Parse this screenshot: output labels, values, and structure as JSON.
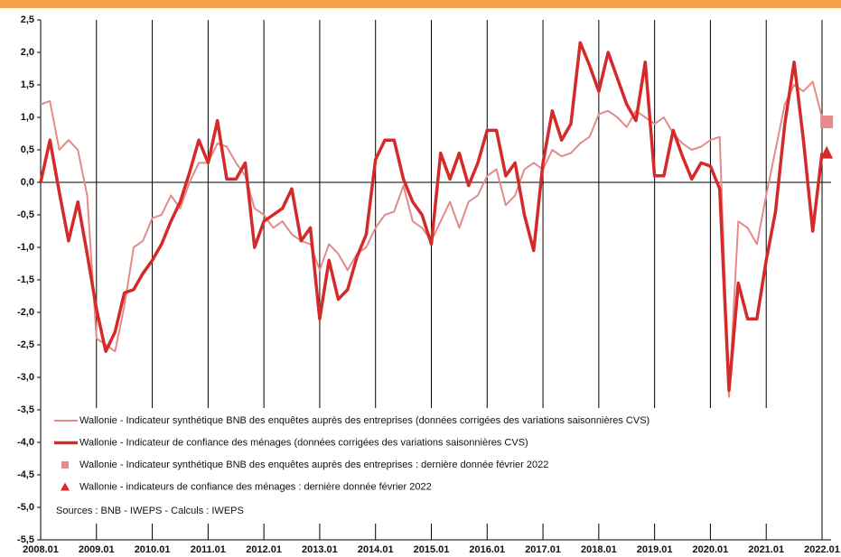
{
  "chart_data": {
    "type": "line",
    "x": [
      "2008.01",
      "2008.03",
      "2008.05",
      "2008.07",
      "2008.09",
      "2008.11",
      "2009.01",
      "2009.03",
      "2009.05",
      "2009.07",
      "2009.09",
      "2009.11",
      "2010.01",
      "2010.03",
      "2010.05",
      "2010.07",
      "2010.09",
      "2010.11",
      "2011.01",
      "2011.03",
      "2011.05",
      "2011.07",
      "2011.09",
      "2011.11",
      "2012.01",
      "2012.03",
      "2012.05",
      "2012.07",
      "2012.09",
      "2012.11",
      "2013.01",
      "2013.03",
      "2013.05",
      "2013.07",
      "2013.09",
      "2013.11",
      "2014.01",
      "2014.03",
      "2014.05",
      "2014.07",
      "2014.09",
      "2014.11",
      "2015.01",
      "2015.03",
      "2015.05",
      "2015.07",
      "2015.09",
      "2015.11",
      "2016.01",
      "2016.03",
      "2016.05",
      "2016.07",
      "2016.09",
      "2016.11",
      "2017.01",
      "2017.03",
      "2017.05",
      "2017.07",
      "2017.09",
      "2017.11",
      "2018.01",
      "2018.03",
      "2018.05",
      "2018.07",
      "2018.09",
      "2018.11",
      "2019.01",
      "2019.03",
      "2019.05",
      "2019.07",
      "2019.09",
      "2019.11",
      "2020.01",
      "2020.03",
      "2020.05",
      "2020.07",
      "2020.09",
      "2020.11",
      "2021.01",
      "2021.03",
      "2021.05",
      "2021.07",
      "2021.09",
      "2021.11",
      "2022.01"
    ],
    "series": [
      {
        "name": "Wallonie - Indicateur synthétique BNB des enquêtes auprès des entreprises (données corrigées des variations saisonnières CVS)",
        "color": "#e58a8a",
        "width": 2,
        "values": [
          1.2,
          1.25,
          0.5,
          0.65,
          0.5,
          -0.2,
          -2.4,
          -2.5,
          -2.6,
          -1.9,
          -1.0,
          -0.9,
          -0.55,
          -0.5,
          -0.2,
          -0.4,
          0.0,
          0.3,
          0.3,
          0.6,
          0.55,
          0.3,
          0.1,
          -0.4,
          -0.5,
          -0.7,
          -0.6,
          -0.8,
          -0.9,
          -0.95,
          -1.35,
          -0.95,
          -1.1,
          -1.35,
          -1.1,
          -1.0,
          -0.7,
          -0.5,
          -0.45,
          -0.05,
          -0.6,
          -0.7,
          -0.9,
          -0.6,
          -0.3,
          -0.7,
          -0.3,
          -0.2,
          0.1,
          0.2,
          -0.35,
          -0.2,
          0.2,
          0.3,
          0.2,
          0.5,
          0.4,
          0.45,
          0.6,
          0.7,
          1.05,
          1.1,
          1.0,
          0.85,
          1.1,
          1.0,
          0.9,
          1.0,
          0.75,
          0.6,
          0.5,
          0.55,
          0.65,
          0.7,
          -3.3,
          -0.6,
          -0.7,
          -0.95,
          -0.2,
          0.5,
          1.2,
          1.5,
          1.4,
          1.55,
          1.0
        ]
      },
      {
        "name": "Wallonie - Indicateur de confiance des ménages (données corrigées des variations saisonnières CVS)",
        "color": "#d42a2a",
        "width": 3.5,
        "values": [
          0.0,
          0.65,
          -0.15,
          -0.9,
          -0.3,
          -1.1,
          -1.95,
          -2.6,
          -2.3,
          -1.7,
          -1.65,
          -1.4,
          -1.2,
          -0.95,
          -0.6,
          -0.3,
          0.15,
          0.65,
          0.3,
          0.95,
          0.05,
          0.05,
          0.3,
          -1.0,
          -0.6,
          -0.5,
          -0.4,
          -0.1,
          -0.9,
          -0.7,
          -2.1,
          -1.2,
          -1.8,
          -1.65,
          -1.15,
          -0.8,
          0.35,
          0.65,
          0.65,
          0.05,
          -0.3,
          -0.5,
          -0.95,
          0.45,
          0.05,
          0.45,
          -0.05,
          0.3,
          0.8,
          0.8,
          0.1,
          0.3,
          -0.5,
          -1.05,
          0.3,
          1.1,
          0.65,
          0.9,
          2.15,
          1.8,
          1.4,
          2.0,
          1.6,
          1.2,
          0.95,
          1.85,
          0.1,
          0.1,
          0.8,
          0.4,
          0.05,
          0.3,
          0.25,
          -0.1,
          -3.2,
          -1.55,
          -2.1,
          -2.1,
          -1.2,
          -0.45,
          0.9,
          1.85,
          0.65,
          -0.75,
          0.45
        ]
      },
      {
        "name": "Wallonie - Indicateur synthétique BNB des enquêtes auprès des entreprises : dernière donnée février 2022",
        "color": "#e58a8a",
        "marker": "square",
        "x": [
          "2022.02"
        ],
        "values": [
          0.93
        ]
      },
      {
        "name": "Wallonie - indicateurs de confiance des ménages : dernière donnée février 2022",
        "color": "#d42a2a",
        "marker": "triangle",
        "x": [
          "2022.02"
        ],
        "values": [
          0.45
        ]
      }
    ],
    "xticks": [
      "2008.01",
      "2009.01",
      "2010.01",
      "2011.01",
      "2012.01",
      "2013.01",
      "2014.01",
      "2015.01",
      "2016.01",
      "2017.01",
      "2018.01",
      "2019.01",
      "2020.01",
      "2021.01",
      "2022.01"
    ],
    "ylim": [
      -5.5,
      2.5
    ],
    "yticks": [
      {
        "value": 2.5,
        "label": "2,5"
      },
      {
        "value": 2.0,
        "label": "2,0"
      },
      {
        "value": 1.5,
        "label": "1,5"
      },
      {
        "value": 1.0,
        "label": "1,0"
      },
      {
        "value": 0.5,
        "label": "0,5"
      },
      {
        "value": 0.0,
        "label": "0,0"
      },
      {
        "value": -0.5,
        "label": "-0,5"
      },
      {
        "value": -1.0,
        "label": "-1,0"
      },
      {
        "value": -1.5,
        "label": "-1,5"
      },
      {
        "value": -2.0,
        "label": "-2,0"
      },
      {
        "value": -2.5,
        "label": "-2,5"
      },
      {
        "value": -3.0,
        "label": "-3,0"
      },
      {
        "value": -3.5,
        "label": "-3,5"
      },
      {
        "value": -4.0,
        "label": "-4,0"
      },
      {
        "value": -4.5,
        "label": "-4,5"
      },
      {
        "value": -5.0,
        "label": "-5,0"
      },
      {
        "value": -5.5,
        "label": "-5,5"
      }
    ],
    "grid": "vertical",
    "note": "Sources : BNB - IWEPS - Calculs : IWEPS"
  }
}
